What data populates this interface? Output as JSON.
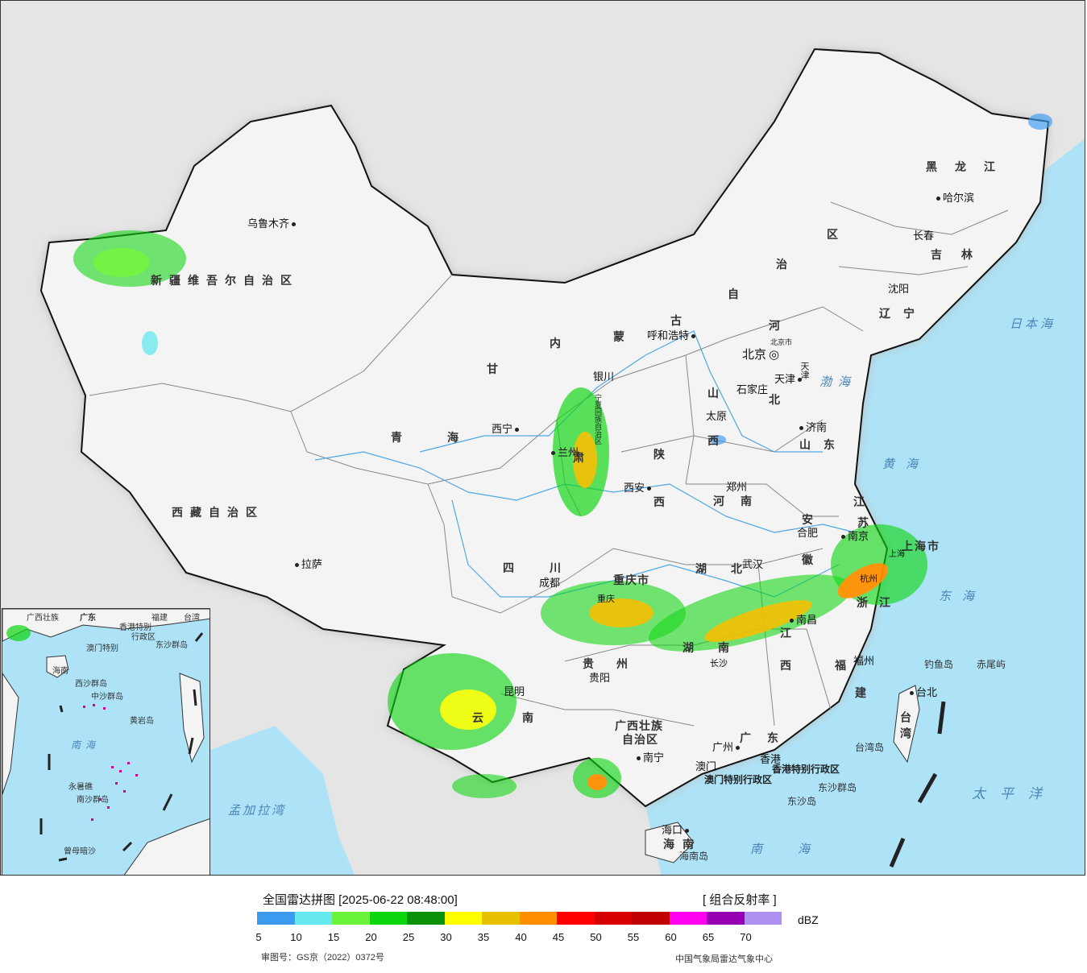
{
  "title": "全国雷达拼图 [2025-06-22 08:48:00]",
  "product": "[ 组合反射率 ]",
  "unit": "dBZ",
  "approval_number": "审图号：GS京（2022）0372号",
  "source": "中国气象局雷达气象中心",
  "legend": {
    "colors": [
      "#3d9bef",
      "#67e7ee",
      "#6cf43c",
      "#0bd60e",
      "#099109",
      "#ffff00",
      "#e7c000",
      "#ff8f00",
      "#ff0000",
      "#d60000",
      "#c00000",
      "#ff00f0",
      "#9600b4",
      "#ad90f0"
    ],
    "ticks": [
      "5",
      "10",
      "15",
      "20",
      "25",
      "30",
      "35",
      "40",
      "45",
      "50",
      "55",
      "60",
      "65",
      "70"
    ]
  },
  "provinces": {
    "xinjiang": "新疆维吾尔自治区",
    "xizang": "西藏自治区",
    "qinghai": "青海",
    "gansu_1": "甘",
    "gansu_2": "肃",
    "neimenggu_1": "内",
    "neimenggu_2": "蒙",
    "neimenggu_3": "古",
    "neimenggu_4": "自",
    "neimenggu_5": "治",
    "neimenggu_6": "区",
    "heilongjiang": "黑龙江",
    "jilin": "吉林",
    "liaoning": "辽宁",
    "hebei_1": "河",
    "hebei_2": "北",
    "shanxi_1": "山",
    "shanxi_2": "西",
    "shandong": "山东",
    "shaanxi_1": "陕",
    "shaanxi_2": "西",
    "henan": "河南",
    "sichuan": "四川",
    "chongqing": "重庆市",
    "hubei": "湖北",
    "anhui_1": "安",
    "anhui_2": "徽",
    "jiangsu_1": "江",
    "jiangsu_2": "苏",
    "shanghai": "上海市",
    "zhejiang": "浙江",
    "jiangxi_1": "江",
    "jiangxi_2": "西",
    "hunan": "湖南",
    "guizhou": "贵州",
    "yunnan": "云南",
    "guangxi_1": "广西壮族",
    "guangxi_2": "自治区",
    "guangdong": "广东",
    "fujian_1": "福",
    "fujian_2": "建",
    "taiwan": "台湾",
    "hainan": "海南",
    "ningxia": "宁夏回族自治区",
    "hongkong": "香港特别行政区",
    "macau": "澳门特别行政区",
    "beijing_city": "北京市",
    "tianjin_city": "天津"
  },
  "cities": {
    "urumqi": "乌鲁木齐",
    "lhasa": "拉萨",
    "xining": "西宁",
    "lanzhou": "兰州",
    "yinchuan": "银川",
    "hohhot": "呼和浩特",
    "beijing": "北京",
    "tianjin": "天津",
    "shijiazhuang": "石家庄",
    "taiyuan": "太原",
    "jinan": "济南",
    "xian": "西安",
    "zhengzhou": "郑州",
    "hefei": "合肥",
    "nanjing": "南京",
    "shanghai": "上海",
    "hangzhou": "杭州",
    "wuhan": "武汉",
    "chengdu": "成都",
    "chongqing": "重庆",
    "changsha": "长沙",
    "nanchang": "南昌",
    "fuzhou": "福州",
    "guiyang": "贵阳",
    "kunming": "昆明",
    "nanning": "南宁",
    "guangzhou": "广州",
    "hongkong": "香港",
    "macau": "澳门",
    "haikou": "海口",
    "taipei": "台北",
    "harbin": "哈尔滨",
    "changchun": "长春",
    "shenyang": "沈阳"
  },
  "seas": {
    "bohai": "渤海",
    "huanghai": "黄海",
    "donghai": "东海",
    "nanhai": "南海",
    "japan_sea": "日本海",
    "pacific": "太平洋",
    "bengal": "孟加拉湾"
  },
  "islands": {
    "diaoyu": "钓鱼岛",
    "chiwei": "赤尾屿",
    "taiwan_island": "台湾岛",
    "dongsha_qundao": "东沙群岛",
    "dongsha_dao": "东沙岛",
    "hainan_island": "海南岛"
  },
  "inset": {
    "guangdong": "广东",
    "guangxi": "广西壮族",
    "fujian": "福建",
    "taiwan": "台湾",
    "hongkong": "香港特别",
    "macau": "澳门特别",
    "admin": "行政区",
    "dongsha": "东沙群岛",
    "hainan": "海南",
    "xisha": "西沙群岛",
    "zhongsha": "中沙群岛",
    "huangyan": "黄岩岛",
    "nanhai": "南海",
    "nansha": "南沙群岛",
    "yongshu": "永暑礁",
    "zengmu": "曾母暗沙"
  }
}
